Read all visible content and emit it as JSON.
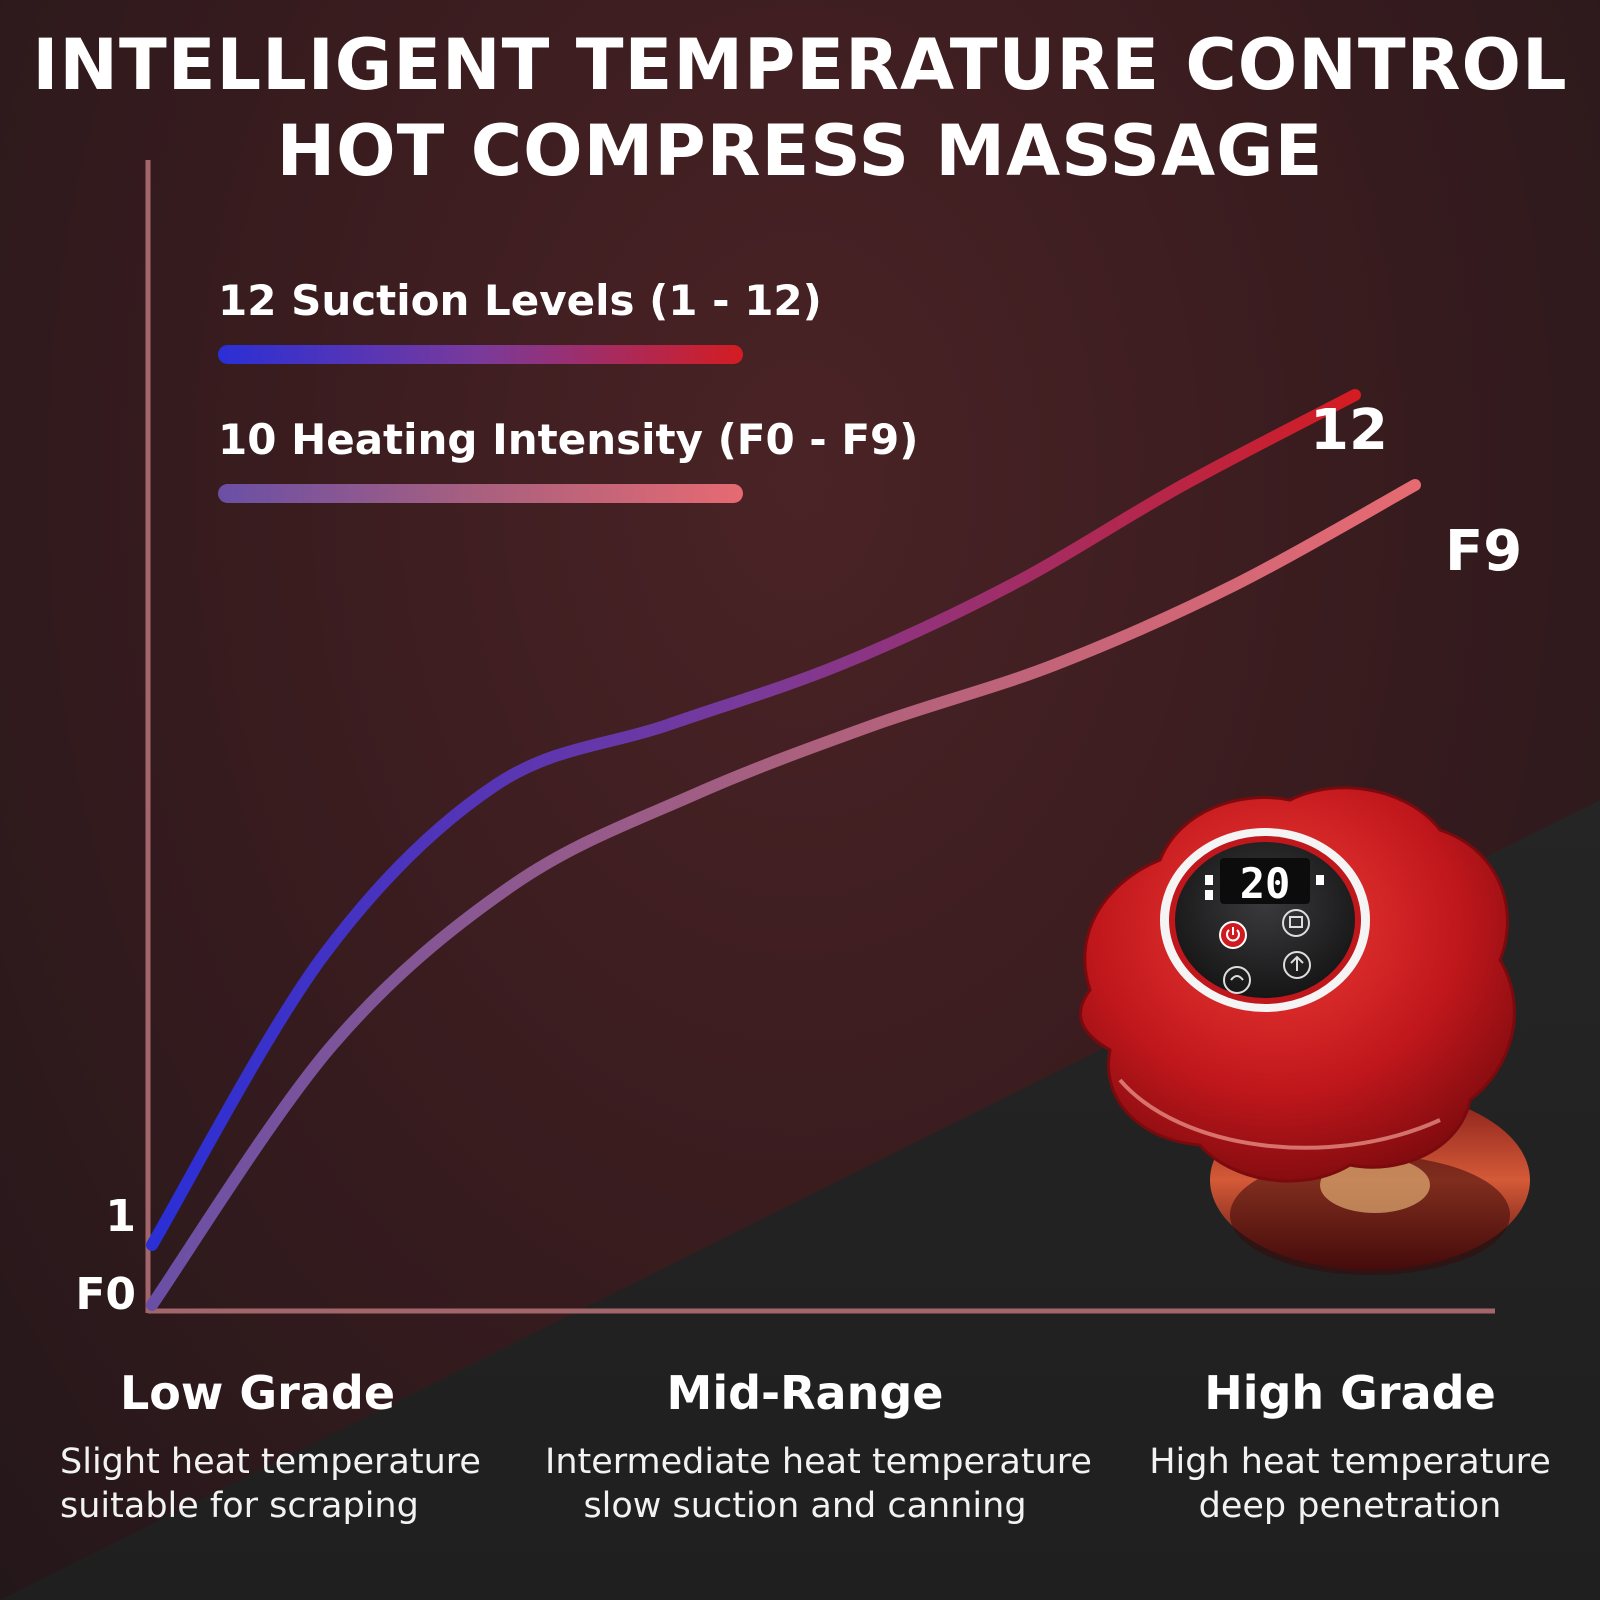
{
  "title": {
    "line1": "INTELLIGENT TEMPERATURE CONTROL",
    "line2": "HOT COMPRESS MASSAGE"
  },
  "chart_data": {
    "type": "line",
    "grid": false,
    "legend_position": "top-left",
    "series": [
      {
        "name": "12 Suction Levels (1 - 12)",
        "start_label": "1",
        "end_label": "12",
        "gradient": [
          "#2a2fd6",
          "#d41c22"
        ],
        "relative_values": [
          0.06,
          0.35,
          0.52,
          0.58,
          0.64,
          0.72,
          0.82,
          0.91
        ]
      },
      {
        "name": "10 Heating Intensity (F0 - F9)",
        "start_label": "F0",
        "end_label": "F9",
        "gradient": [
          "#6a4fa6",
          "#e66a72"
        ],
        "relative_values": [
          0.0,
          0.26,
          0.42,
          0.51,
          0.58,
          0.64,
          0.72,
          0.82
        ]
      }
    ],
    "x_zones": [
      "Low Grade",
      "Mid-Range",
      "High Grade"
    ]
  },
  "zones": [
    {
      "heading": "Low Grade",
      "line1": "Slight heat temperature",
      "line2": "suitable for scraping"
    },
    {
      "heading": "Mid-Range",
      "line1": "Intermediate heat temperature",
      "line2": "slow suction and canning"
    },
    {
      "heading": "High Grade",
      "line1": "High heat temperature",
      "line2": "deep penetration"
    }
  ],
  "device": {
    "display_value": "20",
    "body_color": "#c0171c"
  },
  "icons": [
    "power-icon",
    "heat-icon",
    "mode-icon",
    "suction-icon"
  ]
}
